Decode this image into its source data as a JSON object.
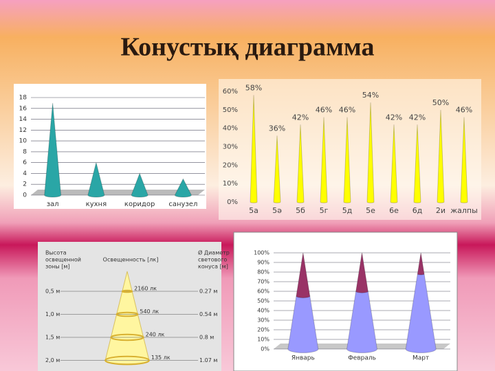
{
  "title": "Конустық диаграмма",
  "chart_data": [
    {
      "type": "cone",
      "categories": [
        "зал",
        "кухня",
        "коридор",
        "санузел"
      ],
      "values": [
        17,
        6,
        4,
        3
      ],
      "color": "#2aa6a6",
      "ylim": [
        0,
        18
      ],
      "yticks": [
        0,
        2,
        4,
        6,
        8,
        10,
        12,
        14,
        16,
        18
      ],
      "grid": true
    },
    {
      "type": "cone",
      "categories": [
        "5а",
        "5ә",
        "5б",
        "5г",
        "5д",
        "5е",
        "6е",
        "6д",
        "2и",
        "жалпы"
      ],
      "values": [
        58,
        36,
        42,
        46,
        46,
        54,
        42,
        42,
        50,
        46
      ],
      "value_labels": [
        "58%",
        "36%",
        "42%",
        "46%",
        "46%",
        "54%",
        "42%",
        "42%",
        "50%",
        "46%"
      ],
      "color": "#ffff00",
      "ylim": [
        0,
        60
      ],
      "yticks": [
        {
          "value": 0,
          "label": "0%"
        },
        {
          "value": 10,
          "label": "10%"
        },
        {
          "value": 20,
          "label": "20%"
        },
        {
          "value": 30,
          "label": "30%"
        },
        {
          "value": 40,
          "label": "40%"
        },
        {
          "value": 50,
          "label": "50%"
        },
        {
          "value": 60,
          "label": "60%"
        }
      ],
      "grid": false
    },
    {
      "type": "stacked-cone",
      "categories": [
        "Январь",
        "Февраль",
        "Март"
      ],
      "series": [
        {
          "color": "#9999ff",
          "values": [
            55,
            60,
            78
          ]
        },
        {
          "color": "#993366",
          "values": [
            45,
            40,
            22
          ]
        }
      ],
      "ylim": [
        0,
        100
      ],
      "yticks": [
        {
          "value": 0,
          "label": "0%"
        },
        {
          "value": 10,
          "label": "10%"
        },
        {
          "value": 20,
          "label": "20%"
        },
        {
          "value": 30,
          "label": "30%"
        },
        {
          "value": 40,
          "label": "40%"
        },
        {
          "value": 50,
          "label": "50%"
        },
        {
          "value": 60,
          "label": "60%"
        },
        {
          "value": 70,
          "label": "70%"
        },
        {
          "value": 80,
          "label": "80%"
        },
        {
          "value": 90,
          "label": "90%"
        },
        {
          "value": 100,
          "label": "100%"
        }
      ],
      "grid": true
    }
  ],
  "diagram": {
    "left_header": [
      "Высота",
      "освещенной",
      "зоны [м]"
    ],
    "center_header": "Освещенность [лк]",
    "right_header": [
      "Ø Диаметр",
      "светового",
      "конуса [м]"
    ],
    "rows": [
      {
        "height": "0,5 м",
        "lux": "2160 лк",
        "diameter": "0.27 м"
      },
      {
        "height": "1,0 м",
        "lux": "540 лк",
        "diameter": "0.54 м"
      },
      {
        "height": "1,5 м",
        "lux": "240 лк",
        "diameter": "0.8 м"
      },
      {
        "height": "2,0 м",
        "lux": "135 лк",
        "diameter": "1.07 м"
      }
    ]
  }
}
